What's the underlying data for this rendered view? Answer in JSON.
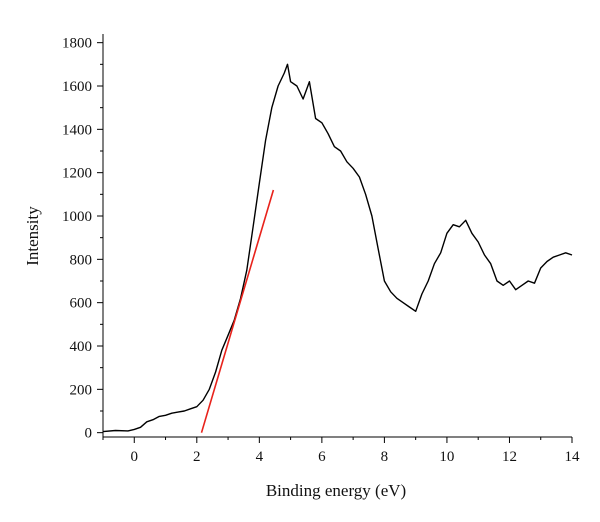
{
  "chart_data": {
    "type": "line",
    "xlabel": "Binding energy (eV)",
    "ylabel": "Intensity",
    "xlim": [
      -1,
      14
    ],
    "ylim": [
      -20,
      1840
    ],
    "x_ticks": [
      0,
      2,
      4,
      6,
      8,
      10,
      12,
      14
    ],
    "y_ticks": [
      0,
      200,
      400,
      600,
      800,
      1000,
      1200,
      1400,
      1600,
      1800
    ],
    "grid": false,
    "legend": "none",
    "series": [
      {
        "color": "#000000",
        "x": [
          -1.0,
          -0.6,
          -0.2,
          0.0,
          0.2,
          0.4,
          0.6,
          0.8,
          1.0,
          1.2,
          1.4,
          1.6,
          1.8,
          2.0,
          2.2,
          2.4,
          2.6,
          2.8,
          3.0,
          3.2,
          3.4,
          3.6,
          3.8,
          4.0,
          4.2,
          4.4,
          4.6,
          4.8,
          4.9,
          5.0,
          5.2,
          5.4,
          5.6,
          5.8,
          6.0,
          6.2,
          6.4,
          6.6,
          6.8,
          7.0,
          7.2,
          7.4,
          7.6,
          7.8,
          8.0,
          8.2,
          8.4,
          8.6,
          8.8,
          9.0,
          9.2,
          9.4,
          9.6,
          9.8,
          10.0,
          10.2,
          10.4,
          10.6,
          10.8,
          11.0,
          11.2,
          11.4,
          11.6,
          11.8,
          12.0,
          12.2,
          12.4,
          12.6,
          12.8,
          13.0,
          13.2,
          13.4,
          13.6,
          13.8,
          14.0
        ],
        "y": [
          5,
          10,
          8,
          15,
          25,
          50,
          60,
          75,
          80,
          90,
          95,
          100,
          110,
          120,
          150,
          200,
          280,
          380,
          450,
          520,
          620,
          750,
          950,
          1150,
          1350,
          1500,
          1600,
          1660,
          1700,
          1620,
          1600,
          1540,
          1620,
          1450,
          1430,
          1380,
          1320,
          1300,
          1250,
          1220,
          1180,
          1100,
          1000,
          850,
          700,
          650,
          620,
          600,
          580,
          560,
          640,
          700,
          780,
          830,
          920,
          960,
          950,
          980,
          920,
          880,
          820,
          780,
          700,
          680,
          700,
          660,
          680,
          700,
          690,
          760,
          790,
          810,
          820,
          830,
          820
        ]
      },
      {
        "color": "#e8221b",
        "x": [
          2.15,
          4.45
        ],
        "y": [
          0,
          1120
        ]
      }
    ]
  }
}
